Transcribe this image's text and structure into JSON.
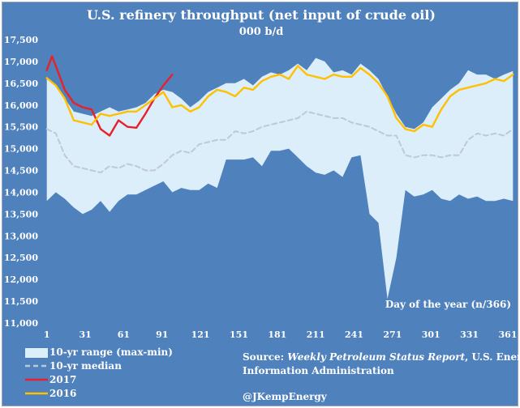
{
  "chart_data": {
    "type": "area",
    "title": "U.S. refinery throughput (net input of  crude oil)",
    "subtitle": "000 b/d",
    "axis_note": "Day of the year (n/366)",
    "x_ticks": [
      1,
      31,
      61,
      91,
      121,
      151,
      181,
      211,
      241,
      271,
      301,
      331,
      361
    ],
    "y_ticks": [
      11000,
      11500,
      12000,
      12500,
      13000,
      13500,
      14000,
      14500,
      15000,
      15500,
      16000,
      16500,
      17000,
      17500
    ],
    "y_tick_labels": [
      "11,000",
      "11,500",
      "12,000",
      "12,500",
      "13,000",
      "13,500",
      "14,000",
      "14,500",
      "15,000",
      "15,500",
      "16,000",
      "16,500",
      "17,000",
      "17,500"
    ],
    "xlim": [
      -2,
      368
    ],
    "ylim": [
      11000,
      17500
    ],
    "range": {
      "name": "10-yr range (max-min)",
      "color": "#dbeefa",
      "x": [
        1,
        8,
        15,
        22,
        29,
        36,
        43,
        50,
        57,
        64,
        71,
        78,
        85,
        92,
        99,
        106,
        113,
        120,
        127,
        134,
        141,
        148,
        155,
        162,
        169,
        176,
        183,
        190,
        197,
        204,
        211,
        218,
        225,
        232,
        239,
        246,
        253,
        260,
        267,
        274,
        281,
        288,
        295,
        302,
        309,
        316,
        323,
        330,
        337,
        344,
        351,
        358,
        365
      ],
      "max": [
        16620,
        16450,
        16150,
        15850,
        15800,
        15750,
        15850,
        15950,
        15850,
        15900,
        15950,
        16050,
        16250,
        16350,
        16300,
        16150,
        15950,
        16100,
        16300,
        16400,
        16500,
        16500,
        16600,
        16450,
        16650,
        16750,
        16700,
        16800,
        16950,
        16800,
        17080,
        17000,
        16750,
        16800,
        16700,
        16950,
        16800,
        16600,
        16200,
        15800,
        15500,
        15450,
        15600,
        15950,
        16150,
        16350,
        16500,
        16800,
        16700,
        16700,
        16600,
        16700,
        16780
      ],
      "min": [
        13800,
        14000,
        13850,
        13650,
        13500,
        13600,
        13800,
        13550,
        13800,
        13950,
        13950,
        14050,
        14150,
        14250,
        14000,
        14100,
        14050,
        14050,
        14200,
        14100,
        14750,
        14750,
        14750,
        14800,
        14600,
        14950,
        14950,
        15000,
        14800,
        14600,
        14450,
        14400,
        14500,
        14350,
        14800,
        14850,
        13500,
        13300,
        11550,
        12500,
        14050,
        13900,
        13950,
        14050,
        13850,
        13800,
        13950,
        13850,
        13900,
        13800,
        13800,
        13850,
        13800
      ]
    },
    "series": [
      {
        "name": "10-yr median",
        "color": "#c0c8d8",
        "style": "dashed",
        "x": [
          1,
          8,
          15,
          22,
          29,
          36,
          43,
          50,
          57,
          64,
          71,
          78,
          85,
          92,
          99,
          106,
          113,
          120,
          127,
          134,
          141,
          148,
          155,
          162,
          169,
          176,
          183,
          190,
          197,
          204,
          211,
          218,
          225,
          232,
          239,
          246,
          253,
          260,
          267,
          274,
          281,
          288,
          295,
          302,
          309,
          316,
          323,
          330,
          337,
          344,
          351,
          358,
          365
        ],
        "values": [
          15450,
          15350,
          14850,
          14600,
          14550,
          14500,
          14450,
          14600,
          14550,
          14650,
          14600,
          14500,
          14500,
          14650,
          14850,
          14950,
          14900,
          15100,
          15150,
          15200,
          15200,
          15400,
          15350,
          15400,
          15500,
          15550,
          15600,
          15650,
          15700,
          15850,
          15800,
          15750,
          15700,
          15700,
          15600,
          15550,
          15500,
          15400,
          15300,
          15300,
          14850,
          14800,
          14850,
          14850,
          14800,
          14850,
          14850,
          15200,
          15350,
          15300,
          15350,
          15300,
          15450
        ]
      },
      {
        "name": "2017",
        "color": "#e8202a",
        "style": "solid",
        "x": [
          1,
          5,
          8,
          15,
          22,
          29,
          36,
          43,
          50,
          57,
          64,
          71,
          78,
          85,
          92,
          99
        ],
        "values": [
          16800,
          17120,
          16900,
          16350,
          16050,
          15950,
          15900,
          15450,
          15300,
          15650,
          15500,
          15480,
          15800,
          16150,
          16450,
          16700
        ]
      },
      {
        "name": "2016",
        "color": "#ffc000",
        "style": "solid",
        "x": [
          1,
          8,
          15,
          22,
          29,
          36,
          43,
          50,
          57,
          64,
          71,
          78,
          85,
          92,
          99,
          106,
          113,
          120,
          127,
          134,
          141,
          148,
          155,
          162,
          169,
          176,
          183,
          190,
          197,
          204,
          211,
          218,
          225,
          232,
          239,
          246,
          253,
          260,
          267,
          274,
          281,
          288,
          295,
          302,
          309,
          316,
          323,
          330,
          337,
          344,
          351,
          358,
          365
        ],
        "values": [
          16620,
          16450,
          16150,
          15650,
          15600,
          15550,
          15800,
          15750,
          15800,
          15850,
          15850,
          16000,
          16150,
          16300,
          15950,
          16000,
          15850,
          15950,
          16200,
          16350,
          16300,
          16200,
          16400,
          16350,
          16550,
          16650,
          16700,
          16600,
          16900,
          16700,
          16650,
          16600,
          16700,
          16650,
          16650,
          16850,
          16700,
          16500,
          16200,
          15700,
          15450,
          15400,
          15550,
          15500,
          15900,
          16200,
          16350,
          16400,
          16450,
          16500,
          16600,
          16550,
          16700
        ]
      }
    ],
    "legend": {
      "placement": "bottom-left",
      "items": [
        {
          "label": "10-yr range (max-min)",
          "kind": "swatch",
          "color": "#dbeefa"
        },
        {
          "label": "10-yr median",
          "kind": "dashed",
          "color": "#c0c8d8"
        },
        {
          "label": "2017",
          "kind": "line",
          "color": "#e8202a"
        },
        {
          "label": "2016",
          "kind": "line",
          "color": "#ffc000"
        }
      ]
    },
    "source_line1_prefix": "Source: ",
    "source_line1_italic": "Weekly Petroleum Status Report",
    "source_line1_suffix": ", U.S. Energy",
    "source_line2": "Information Administration",
    "credit": "@JKempEnergy"
  }
}
